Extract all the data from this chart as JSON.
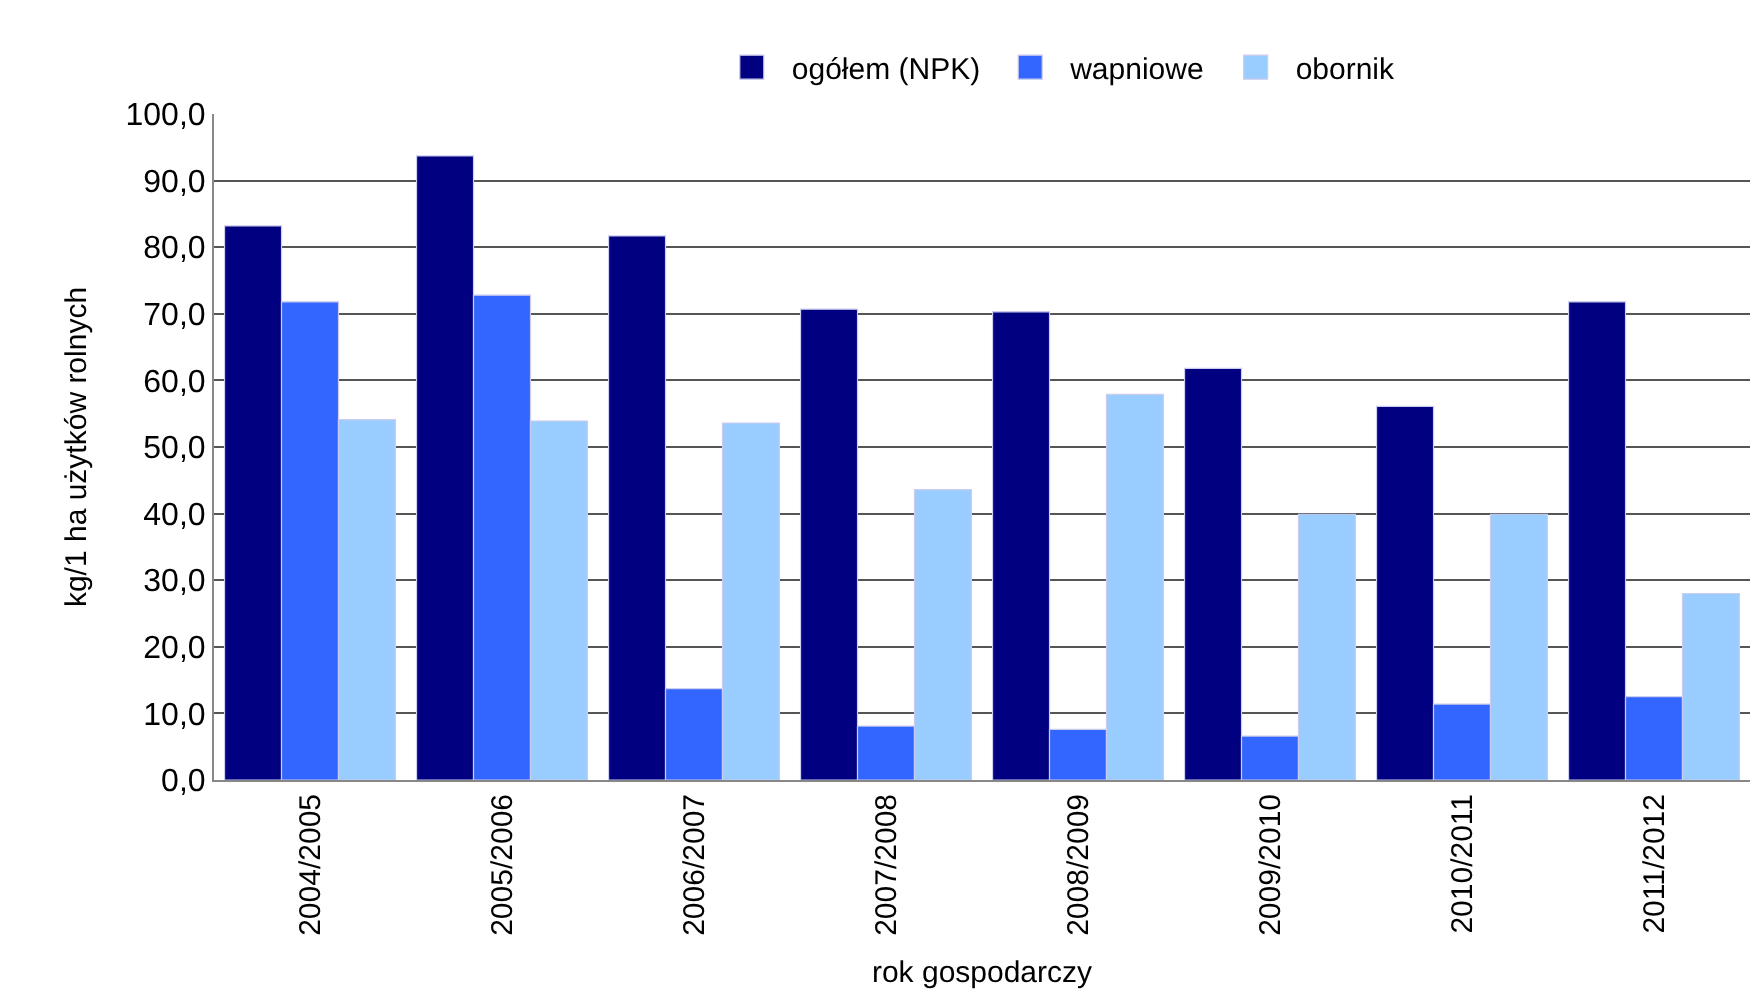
{
  "chart_data": {
    "type": "bar",
    "xlabel": "rok gospodarczy",
    "ylabel": "kg/1 ha użytków rolnych",
    "categories": [
      "2004/2005",
      "2005/2006",
      "2006/2007",
      "2007/2008",
      "2008/2009",
      "2009/2010",
      "2010/2011",
      "2011/2012"
    ],
    "series": [
      {
        "name": "ogółem (NPK)",
        "color": "#000080",
        "values": [
          83.2,
          93.7,
          81.7,
          70.7,
          70.3,
          61.8,
          56.1,
          71.8
        ]
      },
      {
        "name": "wapniowe",
        "color": "#3366ff",
        "values": [
          71.8,
          72.8,
          13.7,
          8.1,
          7.6,
          6.6,
          11.4,
          12.5
        ]
      },
      {
        "name": "obornik",
        "color": "#99ccff",
        "values": [
          54.1,
          53.9,
          53.6,
          43.6,
          57.9,
          39.9,
          39.9,
          28.0
        ]
      }
    ],
    "ylim": [
      0,
      100
    ],
    "yticks": [
      {
        "value": 0,
        "label": "0,0"
      },
      {
        "value": 10,
        "label": "10,0"
      },
      {
        "value": 20,
        "label": "20,0"
      },
      {
        "value": 30,
        "label": "30,0"
      },
      {
        "value": 40,
        "label": "40,0"
      },
      {
        "value": 50,
        "label": "50,0"
      },
      {
        "value": 60,
        "label": "60,0"
      },
      {
        "value": 70,
        "label": "70,0"
      },
      {
        "value": 80,
        "label": "80,0"
      },
      {
        "value": 90,
        "label": "90,0"
      },
      {
        "value": 100,
        "label": "100,0"
      }
    ],
    "grid": "y",
    "legend": "top"
  }
}
